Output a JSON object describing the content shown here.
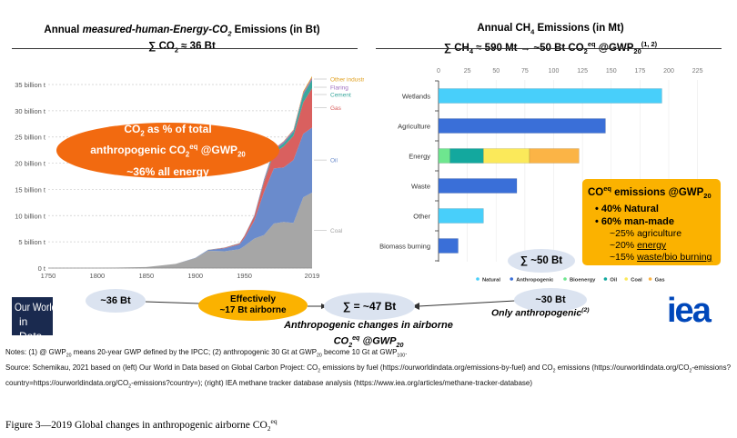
{
  "left_panel": {
    "title_pre": "Annual ",
    "title_italic": "measured-human-Energy-CO",
    "title_italic_sub": "2",
    "title_post": " Emissions (in Bt)",
    "subtitle": "∑ CO",
    "subtitle_sub": "2",
    "subtitle_post": " ≈ 36 Bt",
    "callout": {
      "line1_a": "CO",
      "line1_sub": "2",
      "line1_b": " as % of total",
      "line2_a": "anthropogenic CO",
      "line2_sub": "2",
      "line2_sup": "eq",
      "line2_b": " @GWP",
      "line2_sub2": "20",
      "line3": "~36% all energy",
      "color": "#f26a10"
    }
  },
  "right_panel": {
    "title_a": "Annual CH",
    "title_sub": "4",
    "title_b": " Emissions (in Mt)",
    "subtitle_a": "∑ CH",
    "subtitle_sub": "4",
    "subtitle_b": " ≈ 590 Mt → ~50 Bt CO",
    "subtitle_sub2": "2",
    "subtitle_sup": "eq",
    "subtitle_c": " @GWP",
    "subtitle_sub3": "20",
    "subtitle_sup2": "(1, 2)",
    "sum_bubble": "∑ ~50 Bt",
    "info_box": {
      "heading_a": "CO",
      "heading_sub": "2",
      "heading_sup": "eq",
      "heading_b": " emissions @GWP",
      "heading_sub2": "20",
      "bullet1": "• 40% Natural",
      "bullet2": "• 60% man-made",
      "sub1": "~25% agriculture",
      "sub2_a": "~20% ",
      "sub2_b": "energy",
      "sub3_a": "~15% ",
      "sub3_b": "waste/bio burning",
      "color": "#fbb200"
    }
  },
  "chart_data": [
    {
      "type": "area",
      "stacked": true,
      "ylabel": "",
      "ylim": [
        0,
        37
      ],
      "yticks": [
        "0 t",
        "5 billion t",
        "10 billion t",
        "15 billion t",
        "20 billion t",
        "25 billion t",
        "30 billion t",
        "35 billion t"
      ],
      "ytick_values": [
        0,
        5,
        10,
        15,
        20,
        25,
        30,
        35
      ],
      "xticks": [
        "1750",
        "1800",
        "1850",
        "1900",
        "1950",
        "2019"
      ],
      "xtick_values": [
        1750,
        1800,
        1850,
        1900,
        1950,
        2019
      ],
      "grid": true,
      "legend": "right-inline",
      "x": [
        1750,
        1800,
        1850,
        1880,
        1900,
        1913,
        1930,
        1945,
        1950,
        1960,
        1970,
        1980,
        1990,
        2000,
        2010,
        2019
      ],
      "series": [
        {
          "name": "Coal",
          "color": "#a6a6a6",
          "values": [
            0,
            0.03,
            0.2,
            0.8,
            1.9,
            3.3,
            3.2,
            3.6,
            4.2,
            5.6,
            6.3,
            8.5,
            8.8,
            8.6,
            13.5,
            14.4
          ]
        },
        {
          "name": "Oil",
          "color": "#6a8bcc",
          "values": [
            0,
            0,
            0,
            0.01,
            0.05,
            0.15,
            0.6,
            0.9,
            1.5,
            3.4,
            8.2,
            10.5,
            10.4,
            12.0,
            12.1,
            12.4
          ]
        },
        {
          "name": "Gas",
          "color": "#d9605f",
          "values": [
            0,
            0,
            0,
            0,
            0,
            0.02,
            0.1,
            0.2,
            0.4,
            0.8,
            1.9,
            2.9,
            4.0,
            4.6,
            6.0,
            7.5
          ]
        },
        {
          "name": "Cement",
          "color": "#3aa89d",
          "values": [
            0,
            0,
            0,
            0,
            0,
            0.01,
            0.03,
            0.04,
            0.05,
            0.12,
            0.3,
            0.5,
            0.6,
            0.8,
            1.5,
            1.6
          ]
        },
        {
          "name": "Flaring",
          "color": "#a070c0",
          "values": [
            0,
            0,
            0,
            0,
            0,
            0,
            0,
            0.01,
            0.02,
            0.1,
            0.25,
            0.3,
            0.3,
            0.3,
            0.35,
            0.4
          ]
        },
        {
          "name": "Other industry",
          "color": "#e0a020",
          "values": [
            0,
            0,
            0,
            0,
            0,
            0,
            0,
            0,
            0,
            0,
            0,
            0,
            0.1,
            0.1,
            0.25,
            0.3
          ]
        }
      ]
    },
    {
      "type": "bar",
      "orientation": "horizontal",
      "stacked": true,
      "xlim": [
        0,
        225
      ],
      "xticks": [
        "0",
        "25",
        "50",
        "75",
        "100",
        "125",
        "150",
        "175",
        "200",
        "225"
      ],
      "xtick_values": [
        0,
        25,
        50,
        75,
        100,
        125,
        150,
        175,
        200,
        225
      ],
      "grid": true,
      "legend": "bottom",
      "categories": [
        "Wetlands",
        "Agriculture",
        "Energy",
        "Waste",
        "Other",
        "Biomass burning"
      ],
      "series": [
        {
          "name": "Natural",
          "color": "#48cffa",
          "values": [
            194,
            0,
            0,
            0,
            39,
            0
          ]
        },
        {
          "name": "Anthropogenic",
          "color": "#3a6fd8",
          "values": [
            0,
            145,
            0,
            68,
            0,
            17
          ]
        },
        {
          "name": "Bioenergy",
          "color": "#6ee68f",
          "values": [
            0,
            0,
            10,
            0,
            0,
            0
          ]
        },
        {
          "name": "Oil",
          "color": "#13a89e",
          "values": [
            0,
            0,
            29,
            0,
            0,
            0
          ]
        },
        {
          "name": "Coal",
          "color": "#fbe95a",
          "values": [
            0,
            0,
            40,
            0,
            0,
            0
          ]
        },
        {
          "name": "Gas",
          "color": "#fbb446",
          "values": [
            0,
            0,
            43,
            0,
            0,
            0
          ]
        }
      ]
    }
  ],
  "flow": {
    "co2_bubble": "~36 Bt",
    "effective_line1": "Effectively",
    "effective_line2": "~17 Bt airborne",
    "total_bubble": "∑ = ~47 Bt",
    "ch4_bubble": "~30 Bt",
    "ch4_note": "Only anthropogenic",
    "ch4_note_sup": "(2)",
    "result_line1": "Anthropogenic changes in airborne",
    "result_line2_a": "CO",
    "result_line2_sub": "2",
    "result_line2_sup": "eq",
    "result_line2_b": " @GWP",
    "result_line2_sub2": "20"
  },
  "logos": {
    "owid_line1": "Our World",
    "owid_line2": "in Data",
    "owid_color": "#1a2a4f",
    "iea": "iea",
    "iea_color": "#0047ba"
  },
  "notes": {
    "n1": "Notes: (1) @ GWP",
    "n1_sub": "20",
    "n2": " means 20-year GWP defined by the IPCC; (2) anthropogenic 30 Gt at GWP",
    "n2_sub": "20",
    "n3": " become 10 Gt at GWP",
    "n3_sub": "100",
    "n3_end": ".",
    "source_a": "Source: Schemikau, 2021 based on (left) Our World in Data based on Global Carbon Project: CO",
    "source_sub1": "2",
    "source_b": " emissions by fuel (https://ourworldindata.org/emissions-by-fuel) and CO",
    "source_sub2": "2",
    "source_c": " emissions (https://ourworldindata.org/CO",
    "source_sub3": "2",
    "source_d": "-emissions?country=https://ourworldindata.org/CO",
    "source_sub4": "2",
    "source_e": "-emissions?country=); (right) IEA methane tracker database analysis (https://www.iea.org/articles/methane-tracker-database)"
  },
  "caption": {
    "text": "Figure 3—2019 Global changes in anthropogenic airborne CO",
    "sub": "2",
    "sup": "eq"
  }
}
